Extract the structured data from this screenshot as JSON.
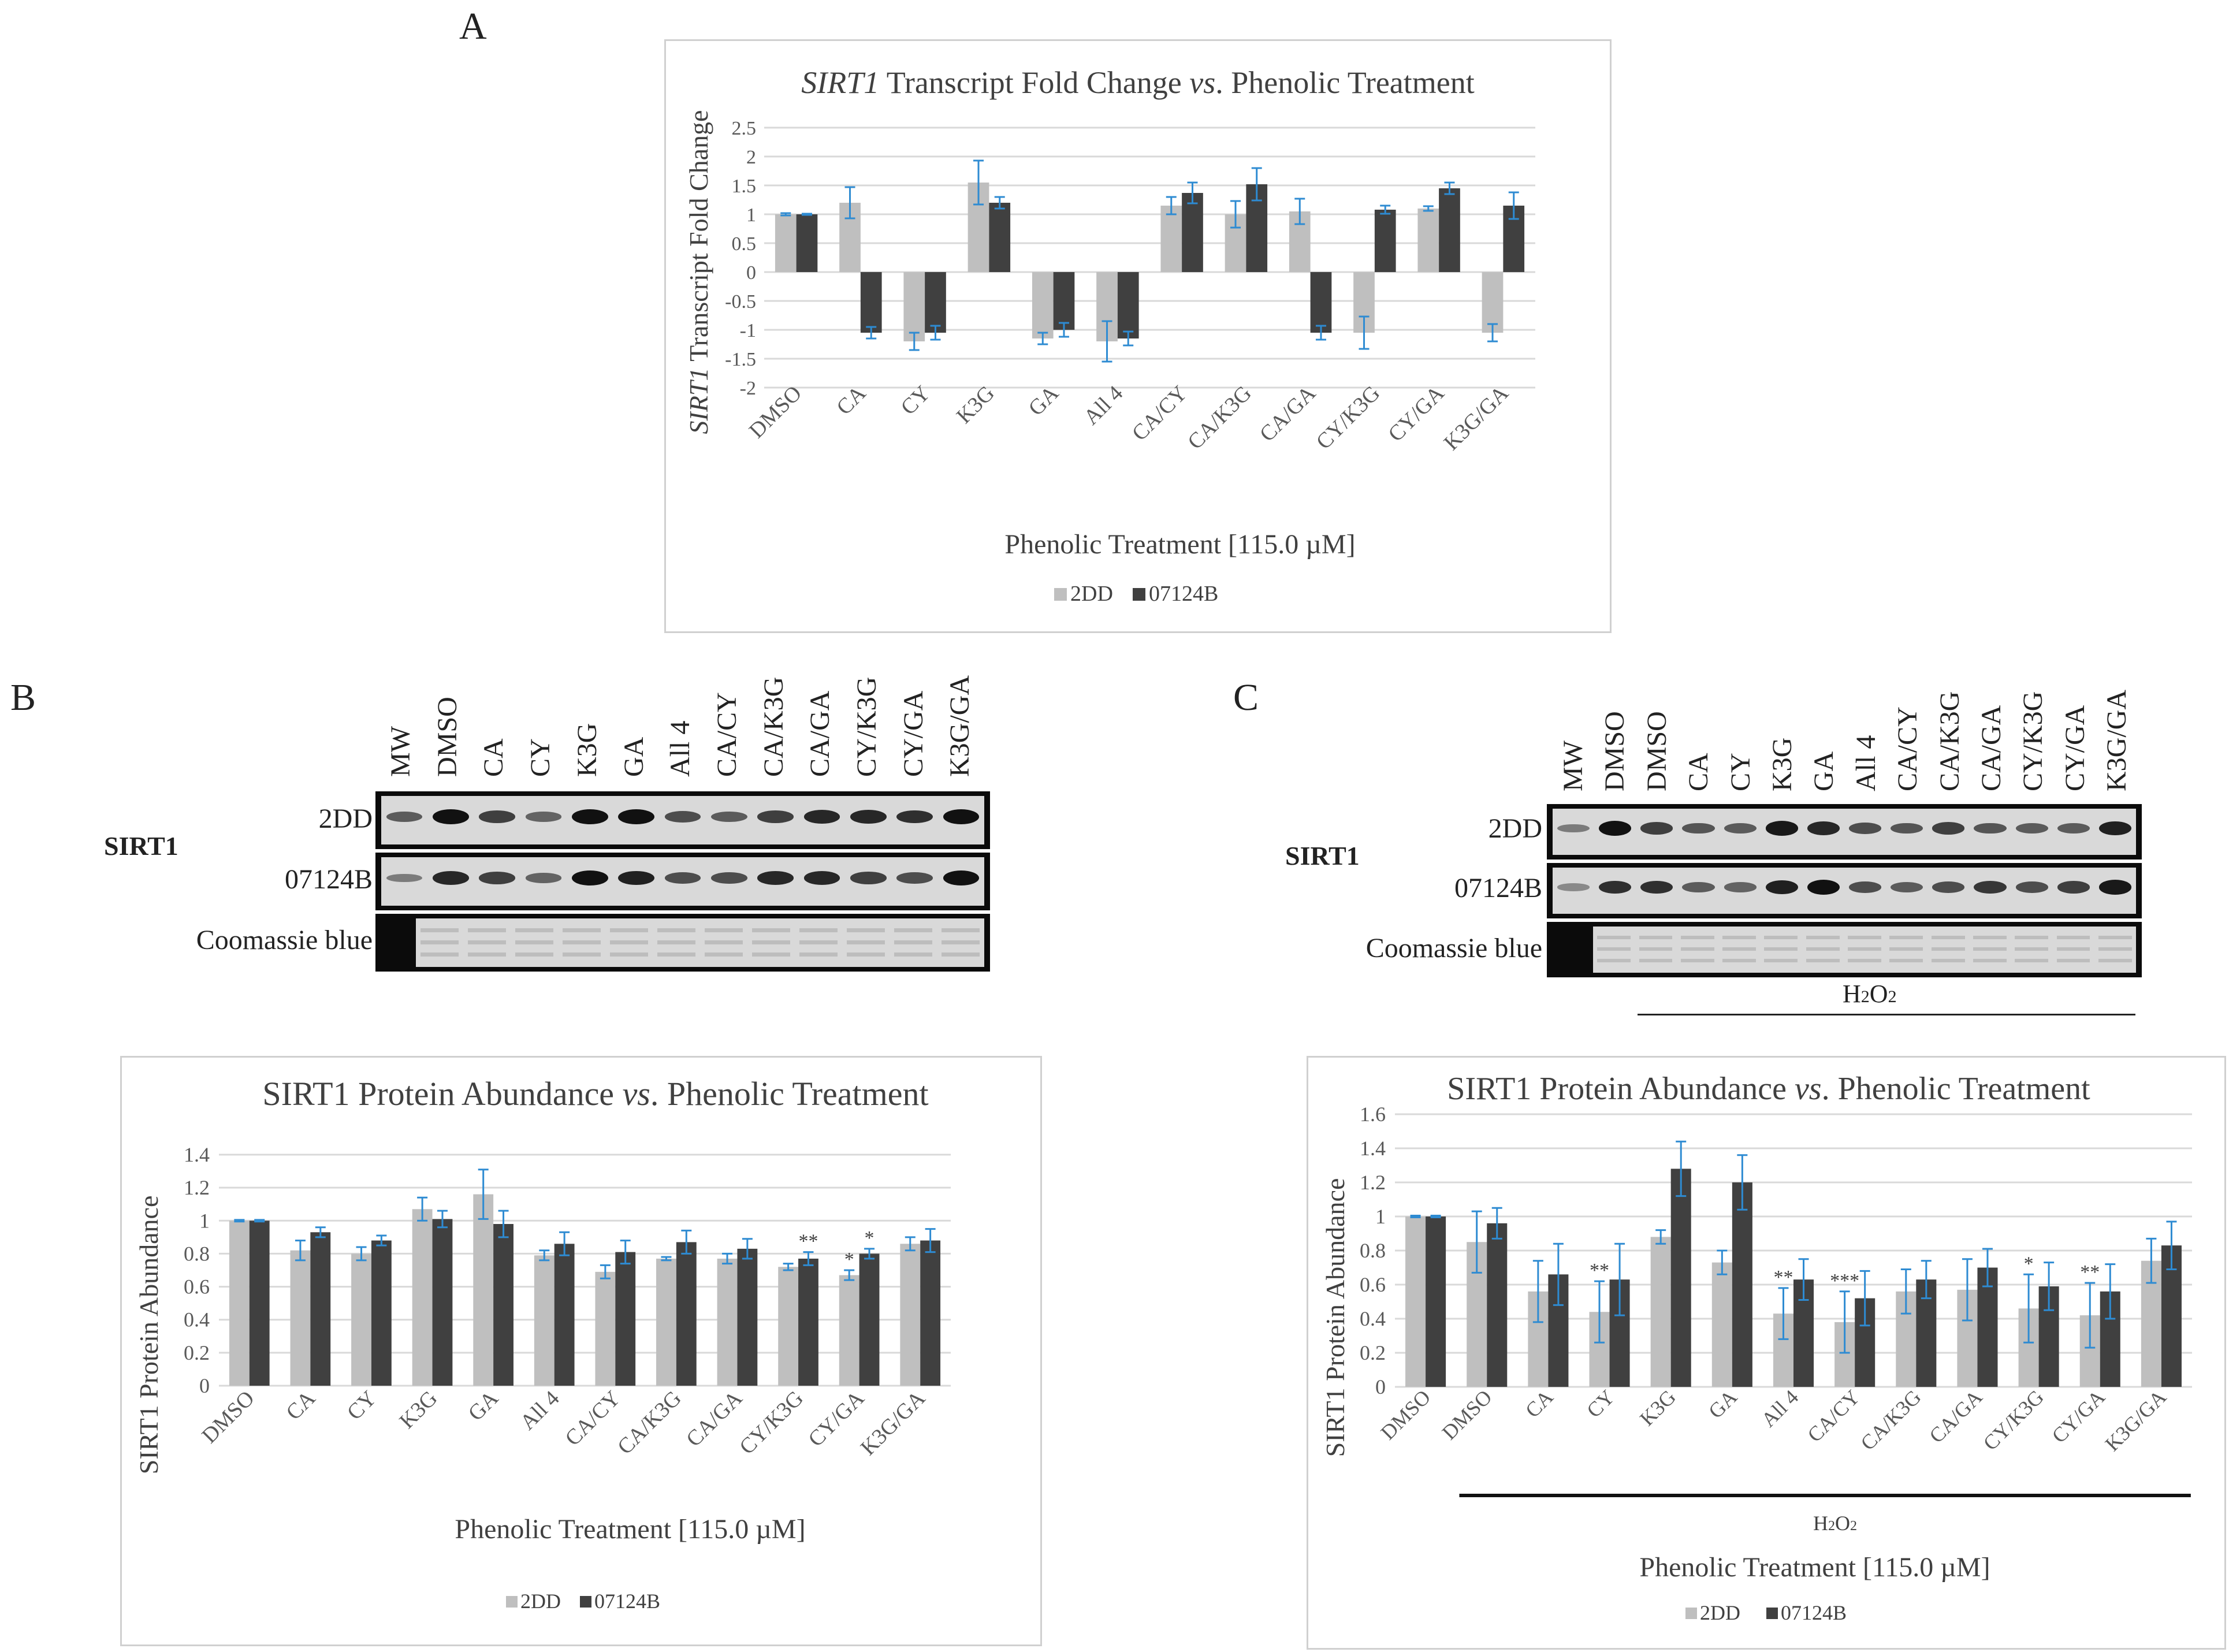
{
  "panels": {
    "a": "A",
    "b": "B",
    "c": "C"
  },
  "colors": {
    "series1": "#bfbfbf",
    "series2": "#404040",
    "error": "#2e8bd2",
    "grid": "#d9d9d9",
    "text": "#595959"
  },
  "chart_data": [
    {
      "id": "A",
      "type": "bar",
      "title": "SIRT1 Transcript Fold Change vs. Phenolic Treatment",
      "title_parts": {
        "gene": "SIRT1",
        "mid": " Transcript Fold Change ",
        "vs": "vs",
        "end": ". Phenolic Treatment"
      },
      "xlabel": "Phenolic Treatment [115.0 µM]",
      "ylabel": "SIRT1 Transcript Fold Change",
      "ylabel_parts": {
        "gene": "SIRT1",
        "rest": " Transcript Fold Change"
      },
      "ylim": [
        -2,
        2.5
      ],
      "yticks": [
        -2,
        -1.5,
        -1,
        -0.5,
        0,
        0.5,
        1,
        1.5,
        2,
        2.5
      ],
      "ytick_labels": [
        "-2",
        "-1.5",
        "-1",
        "-0.5",
        "0",
        "0.5",
        "1",
        "1.5",
        "2",
        "2.5"
      ],
      "categories": [
        "DMSO",
        "CA",
        "CY",
        "K3G",
        "GA",
        "All 4",
        "CA/CY",
        "CA/K3G",
        "CA/GA",
        "CY/K3G",
        "CY/GA",
        "K3G/GA"
      ],
      "series": [
        {
          "name": "2DD",
          "values": [
            1.0,
            1.2,
            -1.2,
            1.55,
            -1.15,
            -1.2,
            1.15,
            1.0,
            1.05,
            -1.05,
            1.1,
            -1.05
          ],
          "errors": [
            0.02,
            0.27,
            0.15,
            0.38,
            0.1,
            0.35,
            0.15,
            0.23,
            0.22,
            0.28,
            0.04,
            0.15
          ]
        },
        {
          "name": "07124B",
          "values": [
            1.0,
            -1.05,
            -1.05,
            1.2,
            -1.0,
            -1.15,
            1.37,
            1.52,
            -1.05,
            1.08,
            1.45,
            1.15
          ],
          "errors": [
            0.01,
            0.1,
            0.12,
            0.1,
            0.12,
            0.12,
            0.18,
            0.28,
            0.12,
            0.07,
            0.1,
            0.23
          ]
        }
      ],
      "legend": [
        "2DD",
        "07124B"
      ]
    },
    {
      "id": "B",
      "type": "bar",
      "title": "SIRT1 Protein Abundance vs. Phenolic Treatment",
      "title_parts": {
        "start": "SIRT1 Protein Abundance ",
        "vs": "vs",
        "end": ". Phenolic Treatment"
      },
      "xlabel": "Phenolic Treatment [115.0 µM]",
      "ylabel": "SIRT1 Protein Abundance",
      "ylim": [
        0,
        1.4
      ],
      "yticks": [
        0,
        0.2,
        0.4,
        0.6,
        0.8,
        1,
        1.2,
        1.4
      ],
      "ytick_labels": [
        "0",
        "0.2",
        "0.4",
        "0.6",
        "0.8",
        "1",
        "1.2",
        "1.4"
      ],
      "categories": [
        "DMSO",
        "CA",
        "CY",
        "K3G",
        "GA",
        "All 4",
        "CA/CY",
        "CA/K3G",
        "CA/GA",
        "CY/K3G",
        "CY/GA",
        "K3G/GA"
      ],
      "series": [
        {
          "name": "2DD",
          "values": [
            1.0,
            0.82,
            0.8,
            1.07,
            1.16,
            0.79,
            0.69,
            0.77,
            0.77,
            0.72,
            0.67,
            0.86
          ],
          "errors": [
            0.005,
            0.06,
            0.04,
            0.07,
            0.15,
            0.03,
            0.04,
            0.01,
            0.03,
            0.02,
            0.03,
            0.04
          ]
        },
        {
          "name": "07124B",
          "values": [
            1.0,
            0.93,
            0.88,
            1.01,
            0.98,
            0.86,
            0.81,
            0.87,
            0.83,
            0.77,
            0.8,
            0.88
          ],
          "errors": [
            0.005,
            0.03,
            0.03,
            0.05,
            0.08,
            0.07,
            0.07,
            0.07,
            0.06,
            0.04,
            0.03,
            0.07
          ]
        }
      ],
      "annotations": [
        {
          "category": "CY/K3G",
          "series": "07124B",
          "text": "**"
        },
        {
          "category": "CY/GA",
          "series": "2DD",
          "text": "*"
        },
        {
          "category": "CY/GA",
          "series": "07124B",
          "text": "*"
        }
      ],
      "legend": [
        "2DD",
        "07124B"
      ]
    },
    {
      "id": "C",
      "type": "bar",
      "title": "SIRT1 Protein Abundance vs. Phenolic Treatment",
      "title_parts": {
        "start": "SIRT1 Protein Abundance ",
        "vs": "vs",
        "end": ". Phenolic Treatment"
      },
      "xlabel": "Phenolic Treatment [115.0 µM]",
      "bracket_label": "H2O2",
      "bracket_parts": {
        "h": "H",
        "two": "2",
        "o": "O",
        "two_b": "2"
      },
      "ylabel": "SIRT1 Protein Abundance",
      "ylim": [
        0,
        1.6
      ],
      "yticks": [
        0,
        0.2,
        0.4,
        0.6,
        0.8,
        1,
        1.2,
        1.4,
        1.6
      ],
      "ytick_labels": [
        "0",
        "0.2",
        "0.4",
        "0.6",
        "0.8",
        "1",
        "1.2",
        "1.4",
        "1.6"
      ],
      "categories": [
        "DMSO",
        "DMSO",
        "CA",
        "CY",
        "K3G",
        "GA",
        "All 4",
        "CA/CY",
        "CA/K3G",
        "CA/GA",
        "CY/K3G",
        "CY/GA",
        "K3G/GA"
      ],
      "series": [
        {
          "name": "2DD",
          "values": [
            1.0,
            0.85,
            0.56,
            0.44,
            0.88,
            0.73,
            0.43,
            0.38,
            0.56,
            0.57,
            0.46,
            0.42,
            0.74
          ],
          "errors": [
            0.005,
            0.18,
            0.18,
            0.18,
            0.04,
            0.07,
            0.15,
            0.18,
            0.13,
            0.18,
            0.2,
            0.19,
            0.13
          ]
        },
        {
          "name": "07124B",
          "values": [
            1.0,
            0.96,
            0.66,
            0.63,
            1.28,
            1.2,
            0.63,
            0.52,
            0.63,
            0.7,
            0.59,
            0.56,
            0.83
          ],
          "errors": [
            0.005,
            0.09,
            0.18,
            0.21,
            0.16,
            0.16,
            0.12,
            0.16,
            0.11,
            0.11,
            0.14,
            0.16,
            0.14
          ]
        }
      ],
      "annotations": [
        {
          "category": "CY",
          "series": "2DD",
          "text": "**"
        },
        {
          "category": "All 4",
          "series": "2DD",
          "text": "**"
        },
        {
          "category": "CA/CY",
          "series": "2DD",
          "text": "***"
        },
        {
          "category": "CY/K3G",
          "series": "2DD",
          "text": "*"
        },
        {
          "category": "CY/GA",
          "series": "2DD",
          "text": "**"
        }
      ],
      "legend": [
        "2DD",
        "07124B"
      ]
    }
  ],
  "blots": {
    "b": {
      "lanes": [
        "MW",
        "DMSO",
        "CA",
        "CY",
        "K3G",
        "GA",
        "All 4",
        "CA/CY",
        "CA/K3G",
        "CA/GA",
        "CY/K3G",
        "CY/GA",
        "K3G/GA"
      ],
      "protein": "SIRT1",
      "rows": [
        "2DD",
        "07124B",
        "Coomassie blue"
      ],
      "intensity_2dd": [
        0.5,
        1.0,
        0.7,
        0.45,
        1.0,
        1.0,
        0.6,
        0.5,
        0.7,
        0.85,
        0.85,
        0.8,
        1.0
      ],
      "intensity_07124b": [
        0.3,
        0.85,
        0.7,
        0.45,
        1.0,
        0.9,
        0.6,
        0.6,
        0.85,
        0.85,
        0.7,
        0.6,
        1.0
      ]
    },
    "c": {
      "lanes": [
        "MW",
        "DMSO",
        "DMSO",
        "CA",
        "CY",
        "K3G",
        "GA",
        "All 4",
        "CA/CY",
        "CA/K3G",
        "CA/GA",
        "CY/K3G",
        "CY/GA",
        "K3G/GA"
      ],
      "protein": "SIRT1",
      "rows": [
        "2DD",
        "07124B",
        "Coomassie blue"
      ],
      "treatment_label": "H2O2",
      "treatment_parts": {
        "h": "H",
        "two": "2",
        "o": "O",
        "two_b": "2"
      },
      "intensity_2dd": [
        0.3,
        1.0,
        0.7,
        0.55,
        0.5,
        0.95,
        0.85,
        0.6,
        0.55,
        0.7,
        0.55,
        0.5,
        0.5,
        0.9
      ],
      "intensity_07124b": [
        0.2,
        0.8,
        0.8,
        0.5,
        0.45,
        0.9,
        1.0,
        0.6,
        0.5,
        0.6,
        0.75,
        0.6,
        0.7,
        0.95
      ]
    }
  }
}
